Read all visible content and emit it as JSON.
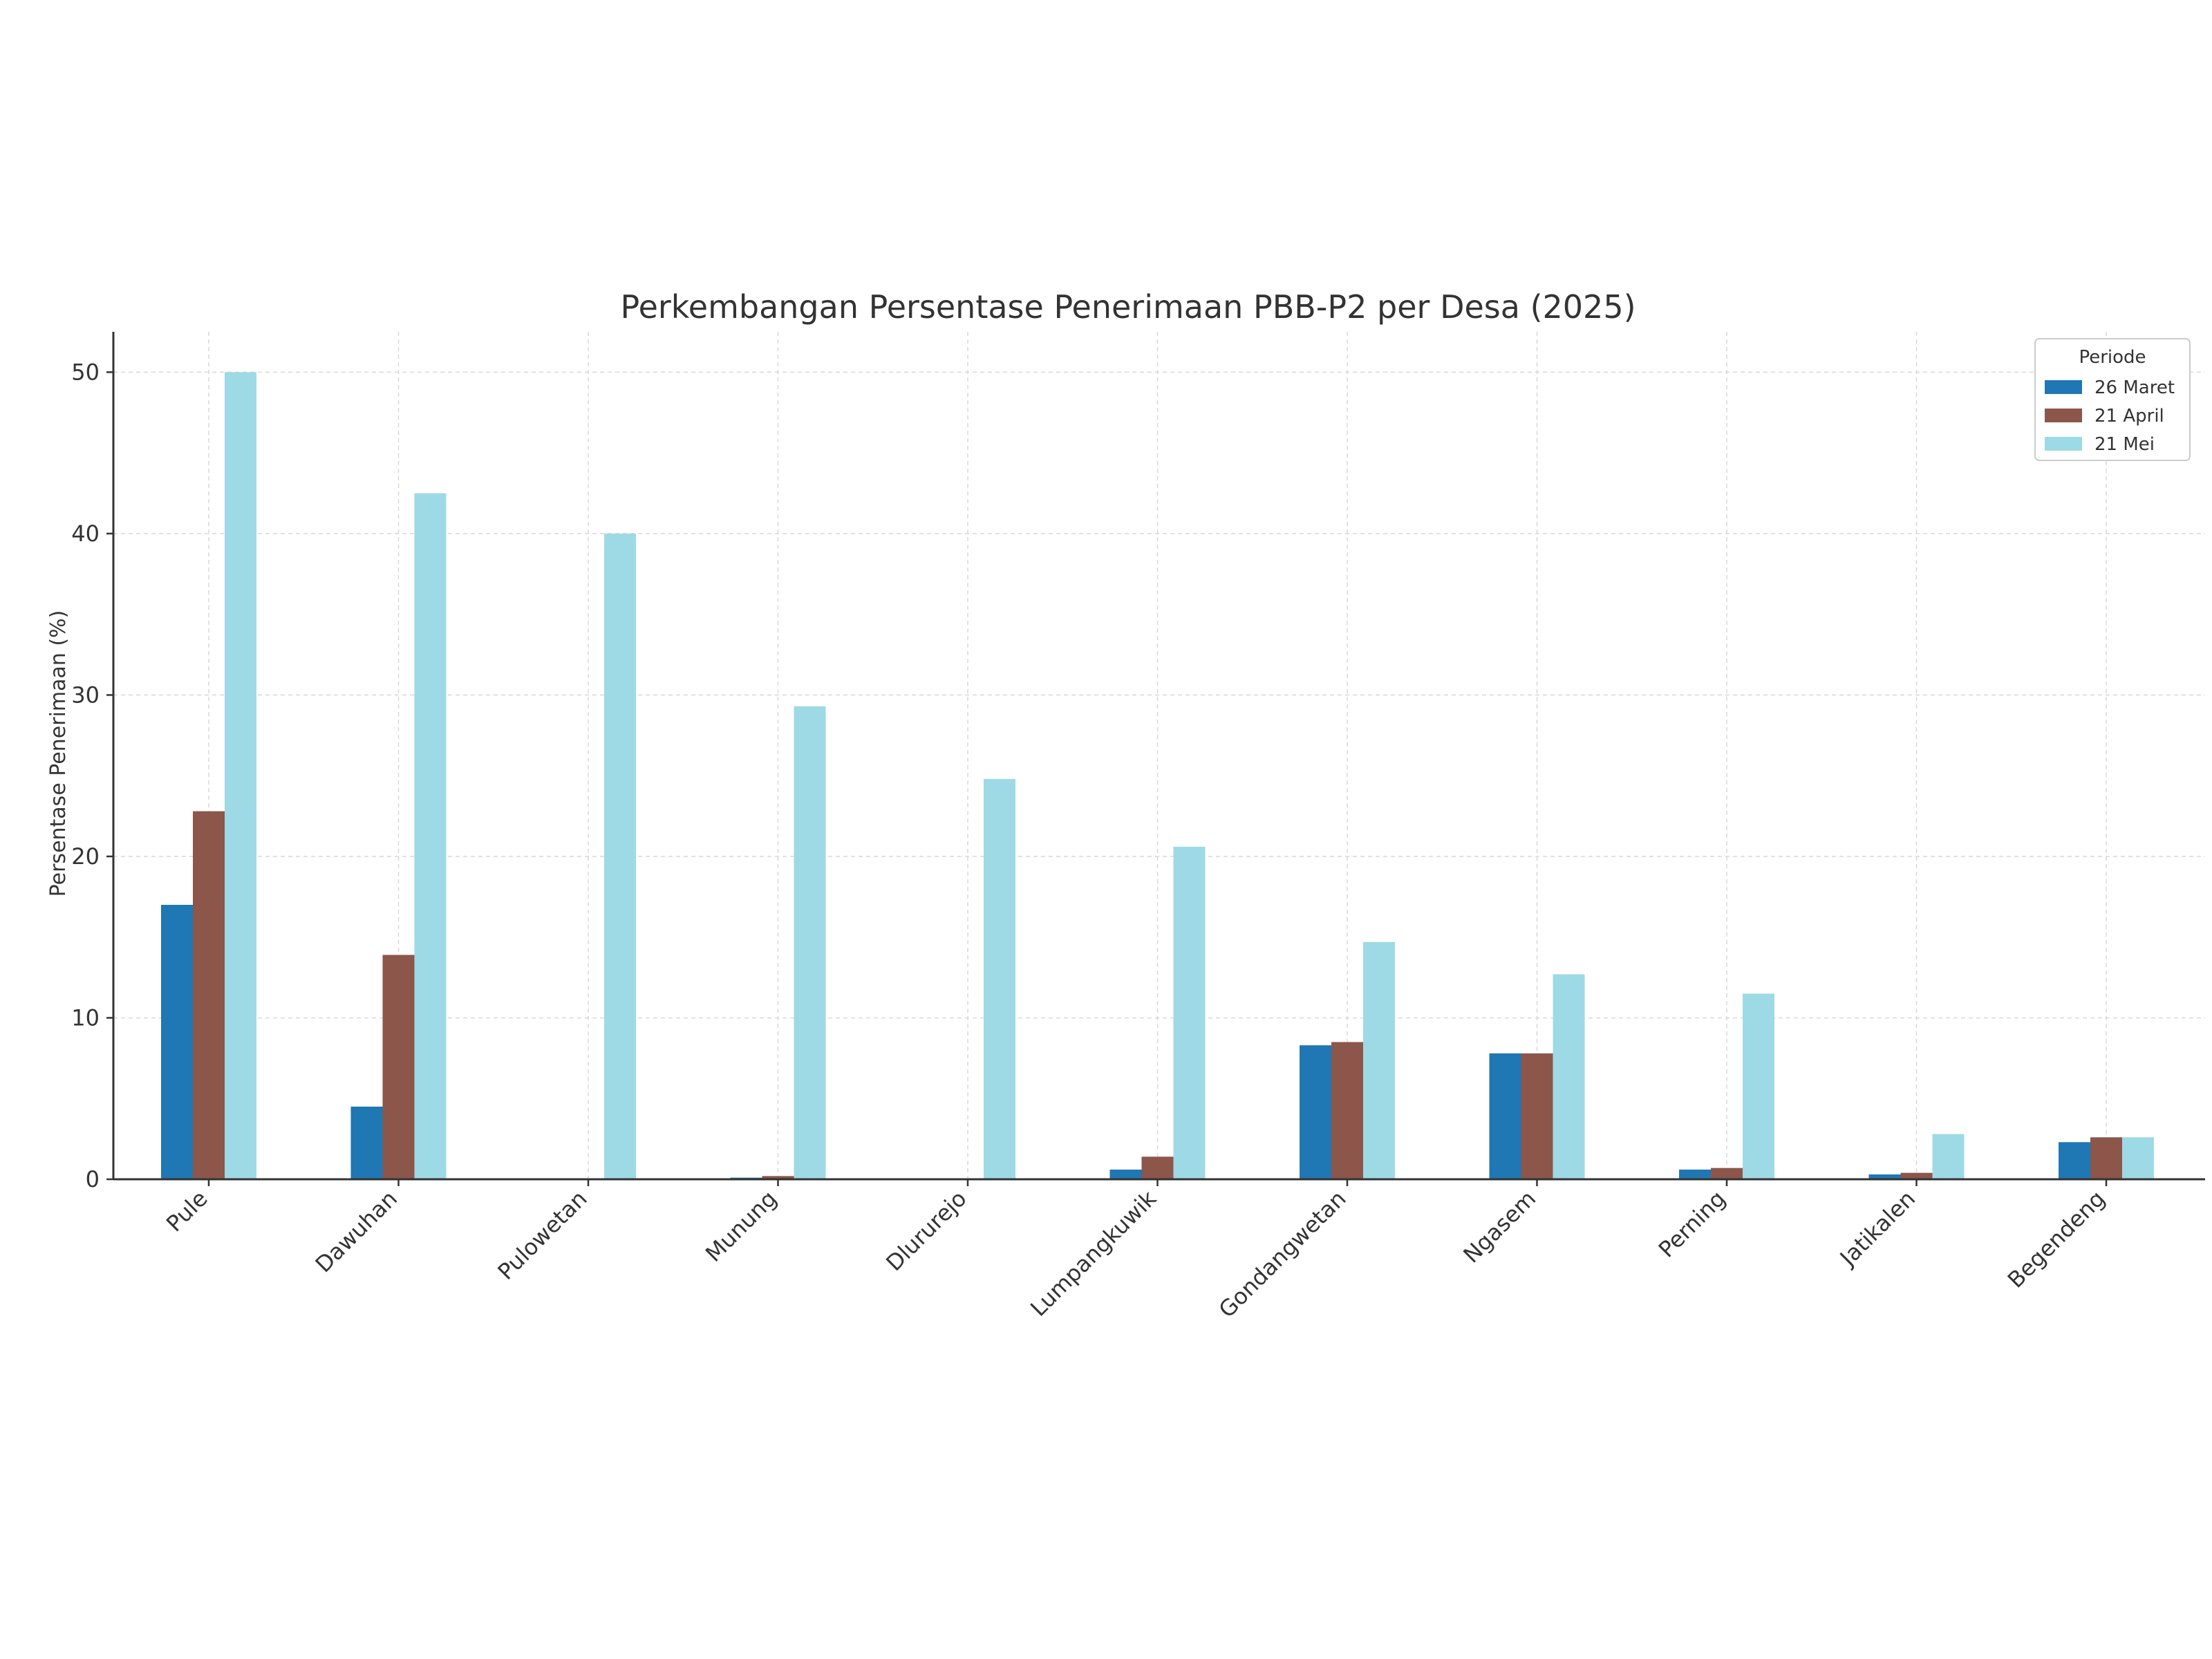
{
  "chart_data": {
    "type": "bar",
    "title": "Perkembangan Persentase Penerimaan PBB-P2 per Desa (2025)",
    "xlabel": "",
    "ylabel": "Persentase Penerimaan (%)",
    "ylim": [
      0,
      52.5
    ],
    "yticks": [
      0,
      10,
      20,
      30,
      40,
      50
    ],
    "grid": true,
    "legend": {
      "title": "Periode",
      "position": "top-right"
    },
    "categories": [
      "Pule",
      "Dawuhan",
      "Pulowetan",
      "Munung",
      "Dlururejo",
      "Lumpangkuwik",
      "Gondangwetan",
      "Ngasem",
      "Perning",
      "Jatikalen",
      "Begendeng"
    ],
    "series": [
      {
        "name": "26 Maret",
        "color": "#1f77b4",
        "values": [
          17.0,
          4.5,
          0.0,
          0.1,
          0.0,
          0.6,
          8.3,
          7.8,
          0.6,
          0.3,
          2.3
        ]
      },
      {
        "name": "21 April",
        "color": "#8c564b",
        "values": [
          22.8,
          13.9,
          0.0,
          0.2,
          0.0,
          1.4,
          8.5,
          7.8,
          0.7,
          0.4,
          2.6
        ]
      },
      {
        "name": "21 Mei",
        "color": "#9edae5",
        "values": [
          50.0,
          42.5,
          40.0,
          29.3,
          24.8,
          20.6,
          14.7,
          12.7,
          11.5,
          2.8,
          2.6
        ]
      }
    ]
  }
}
